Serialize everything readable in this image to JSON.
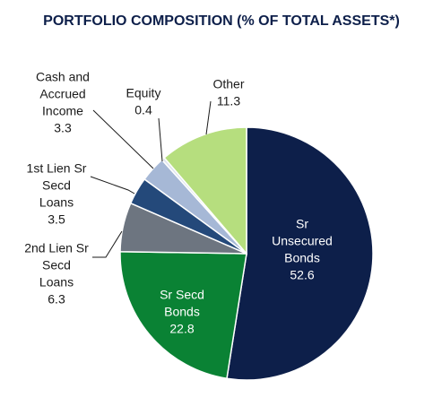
{
  "chart_data": {
    "type": "pie",
    "title": "PORTFOLIO COMPOSITION (% OF TOTAL ASSETS*)",
    "categories": [
      [
        "Sr",
        "Unsecured",
        "Bonds"
      ],
      [
        "Sr Secd",
        "Bonds"
      ],
      [
        "2nd Lien Sr",
        "Secd",
        "Loans"
      ],
      [
        "1st Lien Sr",
        "Secd",
        "Loans"
      ],
      [
        "Cash and",
        "Accrued",
        "Income"
      ],
      [
        "Equity"
      ],
      [
        "Other"
      ]
    ],
    "values": [
      52.6,
      22.8,
      6.3,
      3.5,
      3.3,
      0.4,
      11.3
    ],
    "colors": [
      "#0d1f4a",
      "#0a8234",
      "#6d7580",
      "#24497a",
      "#a6b8d6",
      "#dfe5ee",
      "#b6de7e"
    ]
  }
}
